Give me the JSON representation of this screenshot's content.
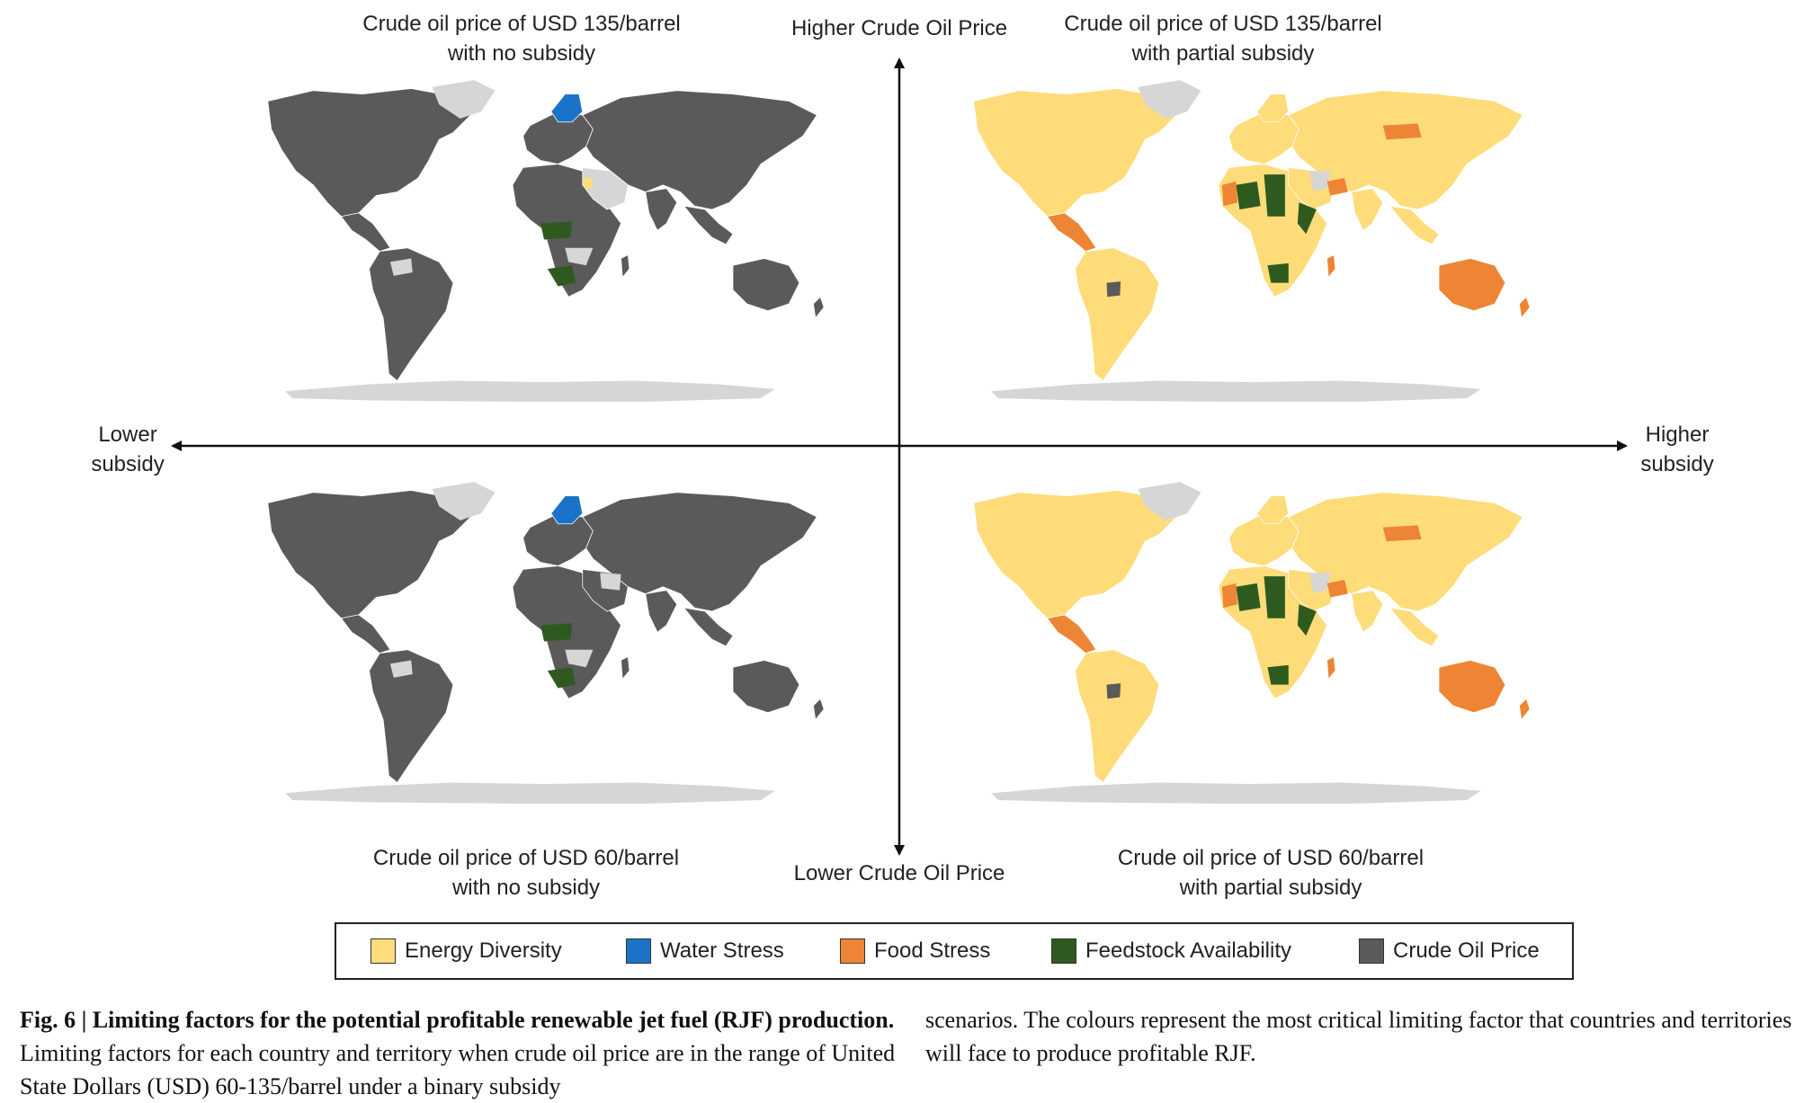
{
  "quadrants": {
    "top_left": {
      "line1": "Crude oil price of USD 135/barrel",
      "line2": "with no subsidy"
    },
    "top_right": {
      "line1": "Crude oil price of USD 135/barrel",
      "line2": "with partial subsidy"
    },
    "bottom_left": {
      "line1": "Crude oil price of USD 60/barrel",
      "line2": "with no subsidy"
    },
    "bottom_right": {
      "line1": "Crude oil price of USD 60/barrel",
      "line2": "with partial subsidy"
    }
  },
  "axes": {
    "top": "Higher Crude Oil Price",
    "bottom": "Lower Crude Oil Price",
    "left_line1": "Lower",
    "left_line2": "subsidy",
    "right_line1": "Higher",
    "right_line2": "subsidy"
  },
  "legend": [
    {
      "label": "Energy Diversity",
      "color": "#fedc7a"
    },
    {
      "label": "Water Stress",
      "color": "#1a73c8"
    },
    {
      "label": "Food Stress",
      "color": "#ee8534"
    },
    {
      "label": "Feedstock Availability",
      "color": "#2f5a1f"
    },
    {
      "label": "Crude Oil Price",
      "color": "#5a5a5a"
    }
  ],
  "colors": {
    "no_data": "#d6d6d6",
    "antarctica": "#d6d6d6"
  },
  "caption": {
    "fig_label": "Fig. 6 | Limiting factors for the potential profitable renewable jet fuel (RJF) production.",
    "col1_rest": " Limiting factors for each country and territory when crude oil price are in the range of United State Dollars (USD) 60-135/barrel under a binary subsidy",
    "col2": "scenarios. The colours represent the most critical limiting factor that countries and territories will face to produce profitable RJF."
  }
}
